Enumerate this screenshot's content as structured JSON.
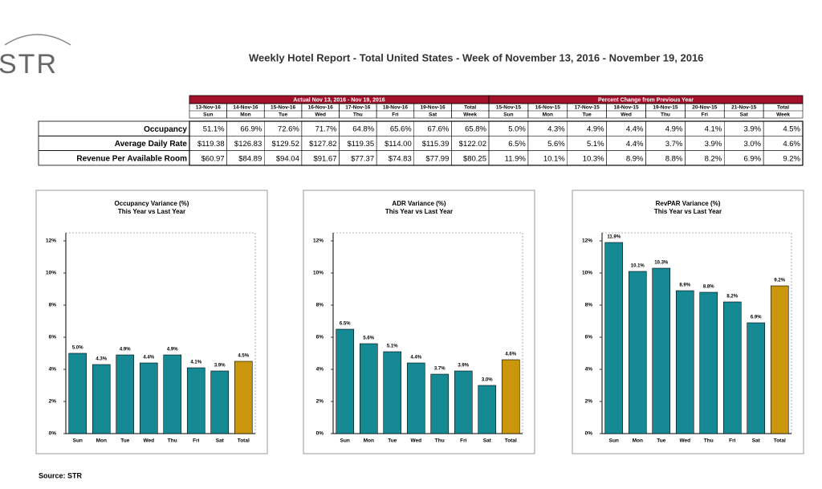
{
  "header": {
    "logo": "STR",
    "title": "Weekly Hotel Report - Total United States - Week of November 13, 2016 - November 19, 2016"
  },
  "table": {
    "groups": [
      {
        "title": "Actual Nov 13, 2016 - Nov 19, 2016",
        "dates": [
          "13-Nov-16",
          "14-Nov-16",
          "15-Nov-16",
          "16-Nov-16",
          "17-Nov-16",
          "18-Nov-16",
          "19-Nov-16",
          "Total"
        ],
        "days": [
          "Sun",
          "Mon",
          "Tue",
          "Wed",
          "Thu",
          "Fri",
          "Sat",
          "Week"
        ]
      },
      {
        "title": "Percent Change from Previous Year",
        "dates": [
          "15-Nov-15",
          "16-Nov-15",
          "17-Nov-15",
          "18-Nov-15",
          "19-Nov-15",
          "20-Nov-15",
          "21-Nov-15",
          "Total"
        ],
        "days": [
          "Sun",
          "Mon",
          "Tue",
          "Wed",
          "Thu",
          "Fri",
          "Sat",
          "Week"
        ]
      }
    ],
    "rows": [
      {
        "label": "Occupancy",
        "cells": [
          "51.1%",
          "66.9%",
          "72.6%",
          "71.7%",
          "64.8%",
          "65.6%",
          "67.6%",
          "65.8%",
          "5.0%",
          "4.3%",
          "4.9%",
          "4.4%",
          "4.9%",
          "4.1%",
          "3.9%",
          "4.5%"
        ]
      },
      {
        "label": "Average Daily Rate",
        "cells": [
          "$119.38",
          "$126.83",
          "$129.52",
          "$127.82",
          "$119.35",
          "$114.00",
          "$115.39",
          "$122.02",
          "6.5%",
          "5.6%",
          "5.1%",
          "4.4%",
          "3.7%",
          "3.9%",
          "3.0%",
          "4.6%"
        ]
      },
      {
        "label": "Revenue Per Available Room",
        "cells": [
          "$60.97",
          "$84.89",
          "$94.04",
          "$91.67",
          "$77.37",
          "$74.83",
          "$77.99",
          "$80.25",
          "11.9%",
          "10.1%",
          "10.3%",
          "8.9%",
          "8.8%",
          "8.2%",
          "6.9%",
          "9.2%"
        ]
      }
    ]
  },
  "chart_data": [
    {
      "type": "bar",
      "title": "Occupancy Variance (%)",
      "subtitle": "This Year vs Last Year",
      "categories": [
        "Sun",
        "Mon",
        "Tue",
        "Wed",
        "Thu",
        "Fri",
        "Sat",
        "Total"
      ],
      "values": [
        5.0,
        4.3,
        4.9,
        4.4,
        4.9,
        4.1,
        3.9,
        4.5
      ],
      "value_labels": [
        "5.0%",
        "4.3%",
        "4.9%",
        "4.4%",
        "4.9%",
        "4.1%",
        "3.9%",
        "4.5%"
      ],
      "colors": [
        "#168a94",
        "#168a94",
        "#168a94",
        "#168a94",
        "#168a94",
        "#168a94",
        "#168a94",
        "#c9960c"
      ],
      "ylim": [
        0,
        12.5
      ],
      "yticks": [
        {
          "value": 0,
          "label": "0%"
        },
        {
          "value": 2,
          "label": "2%"
        },
        {
          "value": 4,
          "label": "4%"
        },
        {
          "value": 6,
          "label": "6%"
        },
        {
          "value": 8,
          "label": "8%"
        },
        {
          "value": 10,
          "label": "10%"
        },
        {
          "value": 12,
          "label": "12%"
        }
      ]
    },
    {
      "type": "bar",
      "title": "ADR Variance (%)",
      "subtitle": "This Year vs Last Year",
      "categories": [
        "Sun",
        "Mon",
        "Tue",
        "Wed",
        "Thu",
        "Fri",
        "Sat",
        "Total"
      ],
      "values": [
        6.5,
        5.6,
        5.1,
        4.4,
        3.7,
        3.9,
        3.0,
        4.6
      ],
      "value_labels": [
        "6.5%",
        "5.6%",
        "5.1%",
        "4.4%",
        "3.7%",
        "3.9%",
        "3.0%",
        "4.6%"
      ],
      "colors": [
        "#168a94",
        "#168a94",
        "#168a94",
        "#168a94",
        "#168a94",
        "#168a94",
        "#168a94",
        "#c9960c"
      ],
      "ylim": [
        0,
        12.5
      ],
      "yticks": [
        {
          "value": 0,
          "label": "0%"
        },
        {
          "value": 2,
          "label": "2%"
        },
        {
          "value": 4,
          "label": "4%"
        },
        {
          "value": 6,
          "label": "6%"
        },
        {
          "value": 8,
          "label": "8%"
        },
        {
          "value": 10,
          "label": "10%"
        },
        {
          "value": 12,
          "label": "12%"
        }
      ]
    },
    {
      "type": "bar",
      "title": "RevPAR Variance (%)",
      "subtitle": "This Year vs Last Year",
      "categories": [
        "Sun",
        "Mon",
        "Tue",
        "Wed",
        "Thu",
        "Fri",
        "Sat",
        "Total"
      ],
      "values": [
        11.9,
        10.1,
        10.3,
        8.9,
        8.8,
        8.2,
        6.9,
        9.2
      ],
      "value_labels": [
        "11.9%",
        "10.1%",
        "10.3%",
        "8.9%",
        "8.8%",
        "8.2%",
        "6.9%",
        "9.2%"
      ],
      "colors": [
        "#168a94",
        "#168a94",
        "#168a94",
        "#168a94",
        "#168a94",
        "#168a94",
        "#168a94",
        "#c9960c"
      ],
      "ylim": [
        0,
        12.5
      ],
      "yticks": [
        {
          "value": 0,
          "label": "0%"
        },
        {
          "value": 2,
          "label": "2%"
        },
        {
          "value": 4,
          "label": "4%"
        },
        {
          "value": 6,
          "label": "6%"
        },
        {
          "value": 8,
          "label": "8%"
        },
        {
          "value": 10,
          "label": "10%"
        },
        {
          "value": 12,
          "label": "12%"
        }
      ]
    }
  ],
  "source": "Source: STR"
}
